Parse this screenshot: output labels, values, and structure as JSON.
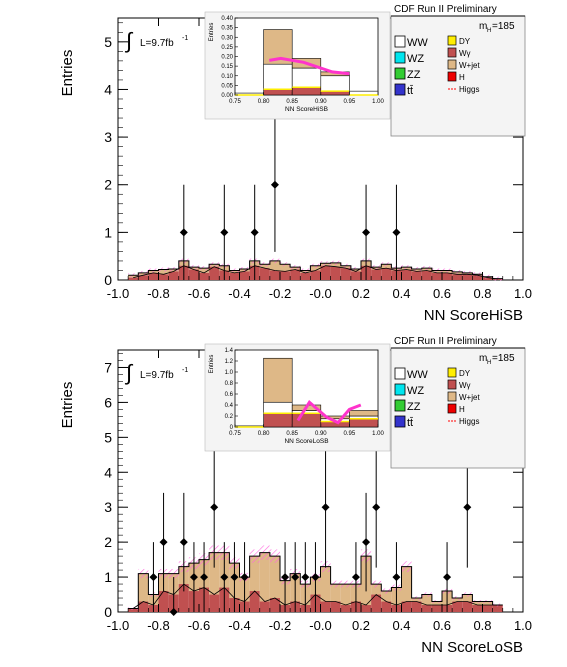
{
  "legend": {
    "run_label": "CDF Run II Preliminary",
    "mass_prefix": "m",
    "mass_sub": "H",
    "mass_value": "=185",
    "lumi": "L=9.7fb",
    "lumi_exp": "-1",
    "integral_symbol": "∫",
    "entries_small": [
      {
        "label": "WW",
        "color": "#ffffff"
      },
      {
        "label": "WZ",
        "color": "#00e5ee"
      },
      {
        "label": "ZZ",
        "color": "#33cc33"
      },
      {
        "label": "tt̄",
        "color": "#3333cc"
      }
    ],
    "entries_right": [
      {
        "label": "DY",
        "color": "#ffee00"
      },
      {
        "label": "Wγ",
        "color": "#c05050"
      },
      {
        "label": "W+jet",
        "color": "#deb887"
      },
      {
        "label": "H",
        "color": "#ee0000"
      },
      {
        "label": "Higgs",
        "color": "#ff3333"
      }
    ]
  },
  "colors": {
    "wjet": "#deb887",
    "wgamma": "#c05050",
    "ww": "#ffffff",
    "signal": "#ff33cc",
    "uncertainty": "#ff66dd"
  },
  "chart_data": [
    {
      "type": "bar",
      "stacked": true,
      "name": "HiSB",
      "xlabel": "NN ScoreHiSB",
      "ylabel": "Entries",
      "xlim": [
        -1.0,
        1.0
      ],
      "ylim": [
        0,
        5.5
      ],
      "xticks": [
        "-1.0",
        "-0.8",
        "-0.6",
        "-0.4",
        "-0.2",
        "-0.0",
        "0.2",
        "0.4",
        "0.6",
        "0.8",
        "1.0"
      ],
      "yticks": [
        "0",
        "1",
        "2",
        "3",
        "4",
        "5"
      ],
      "bin_edges_start": -0.95,
      "bin_width": 0.05,
      "background_wgamma": [
        0.05,
        0.1,
        0.15,
        0.12,
        0.18,
        0.3,
        0.22,
        0.15,
        0.28,
        0.2,
        0.15,
        0.18,
        0.3,
        0.25,
        0.2,
        0.18,
        0.22,
        0.15,
        0.2,
        0.3,
        0.28,
        0.25,
        0.18,
        0.3,
        0.22,
        0.25,
        0.2,
        0.22,
        0.18,
        0.2,
        0.15,
        0.15,
        0.12,
        0.12,
        0.1,
        0.05,
        0.02
      ],
      "background_wjet": [
        0.05,
        0.05,
        0.05,
        0.1,
        0.05,
        0.1,
        0.05,
        0.1,
        0.05,
        0.1,
        0.05,
        0.05,
        0.1,
        0.08,
        0.2,
        0.15,
        0.05,
        0.05,
        0.1,
        0.05,
        0.08,
        0.05,
        0.05,
        0.1,
        0.05,
        0.08,
        0.05,
        0.05,
        0.05,
        0.05,
        0.05,
        0.05,
        0.05,
        0.03,
        0.02,
        0.02,
        0.01
      ],
      "total_line": [
        0.1,
        0.15,
        0.2,
        0.22,
        0.23,
        0.4,
        0.27,
        0.25,
        0.33,
        0.3,
        0.2,
        0.23,
        0.4,
        0.33,
        0.4,
        0.33,
        0.27,
        0.2,
        0.3,
        0.35,
        0.36,
        0.3,
        0.23,
        0.4,
        0.27,
        0.33,
        0.25,
        0.27,
        0.23,
        0.25,
        0.2,
        0.2,
        0.17,
        0.15,
        0.12,
        0.07,
        0.03
      ],
      "data_points": [
        {
          "x": -0.675,
          "y": 1,
          "err": 1.0
        },
        {
          "x": -0.475,
          "y": 1,
          "err": 1.0
        },
        {
          "x": -0.325,
          "y": 1,
          "err": 1.0
        },
        {
          "x": -0.225,
          "y": 2,
          "err": 1.41
        },
        {
          "x": 0.225,
          "y": 1,
          "err": 1.0
        },
        {
          "x": 0.375,
          "y": 1,
          "err": 1.0
        }
      ],
      "inset": {
        "ylabel": "Entries",
        "xlabel": "NN ScoreHiSB",
        "xlim": [
          0.75,
          1.0
        ],
        "ylim": [
          0,
          0.4
        ],
        "xticks": [
          "0.75",
          "0.80",
          "0.85",
          "0.90",
          "0.95",
          "1.00"
        ],
        "yticks": [
          "0.00",
          "0.05",
          "0.10",
          "0.15",
          "0.20",
          "0.25",
          "0.30",
          "0.35",
          "0.40"
        ],
        "bins": [
          {
            "x0": 0.75,
            "x1": 0.8,
            "wjet": 0.0,
            "wgamma": 0.0,
            "ww": 0.01,
            "top": 0.01
          },
          {
            "x0": 0.8,
            "x1": 0.85,
            "wjet": 0.18,
            "wgamma": 0.03,
            "ww": 0.13,
            "top": 0.36
          },
          {
            "x0": 0.85,
            "x1": 0.9,
            "wjet": 0.05,
            "wgamma": 0.04,
            "ww": 0.1,
            "top": 0.2
          },
          {
            "x0": 0.9,
            "x1": 0.95,
            "wjet": 0.02,
            "wgamma": 0.02,
            "ww": 0.08,
            "top": 0.13
          },
          {
            "x0": 0.95,
            "x1": 1.0,
            "wjet": 0.0,
            "wgamma": 0.0,
            "ww": 0.02,
            "top": 0.02
          }
        ],
        "signal": [
          [
            0.81,
            0.18
          ],
          [
            0.83,
            0.19
          ],
          [
            0.87,
            0.17
          ],
          [
            0.92,
            0.12
          ],
          [
            0.95,
            0.11
          ]
        ]
      }
    },
    {
      "type": "bar",
      "stacked": true,
      "name": "LoSB",
      "xlabel": "NN ScoreLoSB",
      "ylabel": "Entries",
      "xlim": [
        -1.0,
        1.0
      ],
      "ylim": [
        0,
        7.5
      ],
      "xticks": [
        "-1.0",
        "-0.8",
        "-0.6",
        "-0.4",
        "-0.2",
        "-0.0",
        "0.2",
        "0.4",
        "0.6",
        "0.8",
        "1.0"
      ],
      "yticks": [
        "0",
        "1",
        "2",
        "3",
        "4",
        "5",
        "6",
        "7"
      ],
      "bin_edges_start": -0.95,
      "bin_width": 0.05,
      "background_wgamma": [
        0.1,
        0.3,
        0.2,
        0.6,
        0.5,
        0.8,
        0.6,
        0.7,
        0.5,
        0.7,
        0.4,
        0.3,
        0.6,
        0.3,
        0.4,
        0.2,
        0.3,
        0.2,
        0.5,
        0.3,
        0.3,
        0.2,
        0.3,
        0.2,
        0.5,
        0.3,
        0.2,
        0.3,
        0.3,
        0.2,
        0.2,
        0.2,
        0.3,
        0.3,
        0.2,
        0.2,
        0.2
      ],
      "background_wjet": [
        0.0,
        0.8,
        0.3,
        0.5,
        0.6,
        0.5,
        0.8,
        0.8,
        1.2,
        1.0,
        1.0,
        0.7,
        1.0,
        1.4,
        1.2,
        0.7,
        0.8,
        0.6,
        0.5,
        1.0,
        0.5,
        0.6,
        0.5,
        1.4,
        0.3,
        0.3,
        0.5,
        1.0,
        0.1,
        0.3,
        0.1,
        0.4,
        0.1,
        0.2,
        0.1,
        0.1,
        0.0
      ],
      "total_line": [
        0.1,
        1.1,
        0.5,
        1.1,
        1.1,
        1.3,
        1.4,
        1.5,
        1.7,
        1.7,
        1.4,
        1.0,
        1.6,
        1.7,
        1.6,
        0.9,
        1.1,
        0.8,
        1.0,
        1.3,
        0.8,
        0.8,
        0.8,
        1.6,
        0.8,
        0.6,
        0.7,
        1.3,
        0.4,
        0.5,
        0.3,
        0.6,
        0.4,
        0.5,
        0.3,
        0.3,
        0.2
      ],
      "data_points": [
        {
          "x": -0.825,
          "y": 1,
          "err": 1.0
        },
        {
          "x": -0.775,
          "y": 2,
          "err": 1.41
        },
        {
          "x": -0.725,
          "y": 0,
          "err": 1.0
        },
        {
          "x": -0.675,
          "y": 2,
          "err": 1.41
        },
        {
          "x": -0.625,
          "y": 1,
          "err": 1.0
        },
        {
          "x": -0.575,
          "y": 1,
          "err": 1.0
        },
        {
          "x": -0.525,
          "y": 3,
          "err": 1.73
        },
        {
          "x": -0.475,
          "y": 1,
          "err": 1.0
        },
        {
          "x": -0.425,
          "y": 1,
          "err": 1.0
        },
        {
          "x": -0.375,
          "y": 1,
          "err": 1.0
        },
        {
          "x": -0.175,
          "y": 1,
          "err": 1.0
        },
        {
          "x": -0.125,
          "y": 1,
          "err": 1.0
        },
        {
          "x": -0.075,
          "y": 1,
          "err": 1.0
        },
        {
          "x": -0.025,
          "y": 1,
          "err": 1.0
        },
        {
          "x": 0.025,
          "y": 3,
          "err": 1.73
        },
        {
          "x": 0.175,
          "y": 1,
          "err": 1.0
        },
        {
          "x": 0.225,
          "y": 2,
          "err": 1.41
        },
        {
          "x": 0.275,
          "y": 3,
          "err": 1.73
        },
        {
          "x": 0.375,
          "y": 1,
          "err": 1.0
        },
        {
          "x": 0.625,
          "y": 1,
          "err": 1.0
        },
        {
          "x": 0.725,
          "y": 3,
          "err": 1.73
        }
      ],
      "inset": {
        "ylabel": "Entries",
        "xlabel": "NN ScoreLoSB",
        "xlim": [
          0.75,
          1.0
        ],
        "ylim": [
          0,
          1.4
        ],
        "xticks": [
          "0.75",
          "0.80",
          "0.85",
          "0.90",
          "0.95",
          "1.00"
        ],
        "yticks": [
          "0",
          "0.2",
          "0.4",
          "0.6",
          "0.8",
          "1.0",
          "1.2",
          "1.4"
        ],
        "bins": [
          {
            "x0": 0.75,
            "x1": 0.8,
            "wjet": 0.0,
            "wgamma": 0.0,
            "ww": 0.02,
            "top": 0.02
          },
          {
            "x0": 0.8,
            "x1": 0.85,
            "wjet": 0.8,
            "wgamma": 0.25,
            "ww": 0.2,
            "top": 1.27
          },
          {
            "x0": 0.85,
            "x1": 0.9,
            "wjet": 0.1,
            "wgamma": 0.25,
            "ww": 0.05,
            "top": 0.4
          },
          {
            "x0": 0.9,
            "x1": 0.95,
            "wjet": 0.05,
            "wgamma": 0.1,
            "ww": 0.05,
            "top": 0.2
          },
          {
            "x0": 0.95,
            "x1": 1.0,
            "wjet": 0.1,
            "wgamma": 0.15,
            "ww": 0.05,
            "top": 0.3
          }
        ],
        "signal": [
          [
            0.86,
            0.12
          ],
          [
            0.88,
            0.45
          ],
          [
            0.91,
            0.18
          ],
          [
            0.93,
            0.08
          ],
          [
            0.95,
            0.32
          ],
          [
            0.97,
            0.4
          ]
        ]
      }
    }
  ]
}
